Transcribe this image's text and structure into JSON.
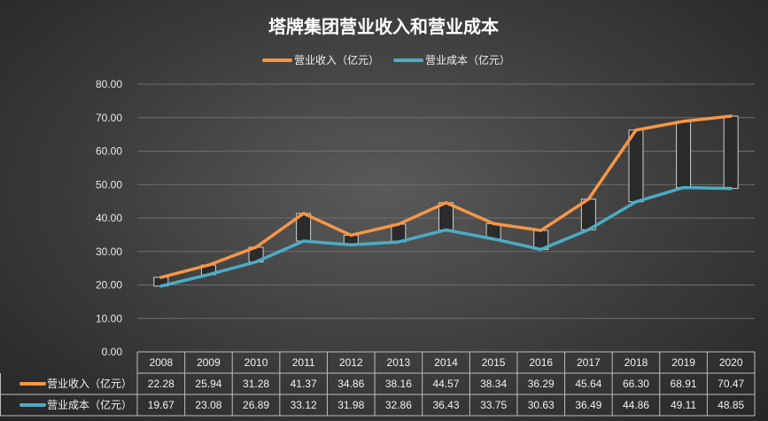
{
  "chart_data": {
    "type": "line",
    "title": "塔牌集团营业收入和营业成本",
    "categories": [
      "2008",
      "2009",
      "2010",
      "2011",
      "2012",
      "2013",
      "2014",
      "2015",
      "2016",
      "2017",
      "2018",
      "2019",
      "2020"
    ],
    "series": [
      {
        "name": "营业收入（亿元）",
        "color": "#F79646",
        "values": [
          22.28,
          25.94,
          31.28,
          41.37,
          34.86,
          38.16,
          44.57,
          38.34,
          36.29,
          45.64,
          66.3,
          68.91,
          70.47
        ],
        "labels": [
          "22.28",
          "25.94",
          "31.28",
          "41.37",
          "34.86",
          "38.16",
          "44.57",
          "38.34",
          "36.29",
          "45.64",
          "66.30",
          "68.91",
          "70.47"
        ]
      },
      {
        "name": "营业成本（亿元）",
        "color": "#4BACC6",
        "values": [
          19.67,
          23.08,
          26.89,
          33.12,
          31.98,
          32.86,
          36.43,
          33.75,
          30.63,
          36.49,
          44.86,
          49.11,
          48.85
        ],
        "labels": [
          "19.67",
          "23.08",
          "26.89",
          "33.12",
          "31.98",
          "32.86",
          "36.43",
          "33.75",
          "30.63",
          "36.49",
          "44.86",
          "49.11",
          "48.85"
        ]
      }
    ],
    "ylim": [
      0,
      80
    ],
    "yticks": [
      "0.00",
      "10.00",
      "20.00",
      "30.00",
      "40.00",
      "50.00",
      "60.00",
      "70.00",
      "80.00"
    ],
    "grid": true,
    "legend_position": "top",
    "data_table": true,
    "up_down_bars": true
  }
}
